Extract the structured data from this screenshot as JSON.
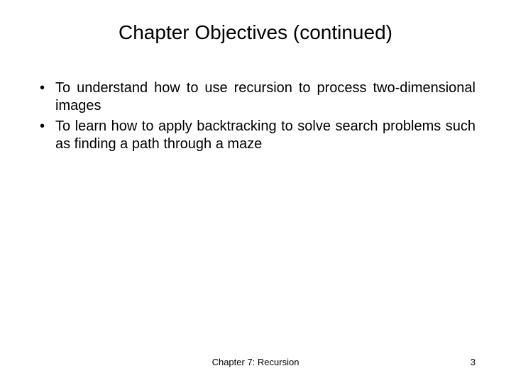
{
  "slide": {
    "title": "Chapter Objectives (continued)",
    "title_fontsize": 28,
    "title_color": "#000000",
    "background_color": "#ffffff",
    "bullets": [
      "To understand how to use recursion to process two-dimensional images",
      "To learn how to apply backtracking to solve search problems such as finding a path through a maze"
    ],
    "bullet_fontsize": 20,
    "bullet_color": "#000000",
    "footer": {
      "center": "Chapter 7: Recursion",
      "page_number": "3",
      "fontsize": 13,
      "color": "#000000"
    }
  }
}
